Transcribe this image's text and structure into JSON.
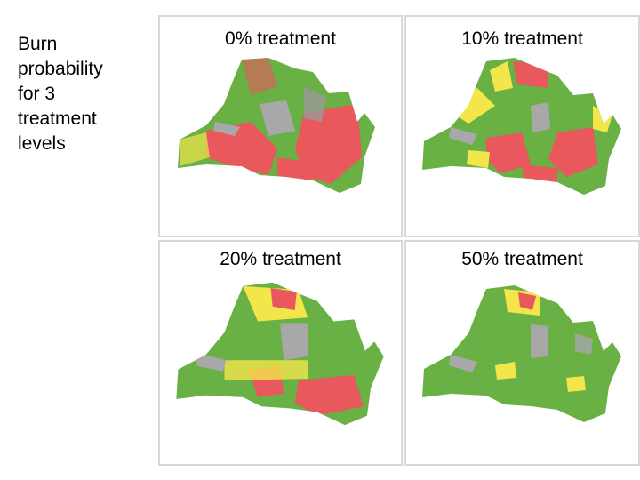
{
  "side_text": "Burn\nprobability\nfor 3\ntreatment\nlevels",
  "panels": [
    {
      "label": "0% treatment",
      "treatment_percent": 0
    },
    {
      "label": "10% treatment",
      "treatment_percent": 10
    },
    {
      "label": "20% treatment",
      "treatment_percent": 20
    },
    {
      "label": "50% treatment",
      "treatment_percent": 50
    }
  ],
  "colors": {
    "low": "#69b045",
    "medium": "#f2e64a",
    "high": "#e8585d",
    "unburnable": "#a8a8a8",
    "panel_border": "#d8d8d8"
  }
}
